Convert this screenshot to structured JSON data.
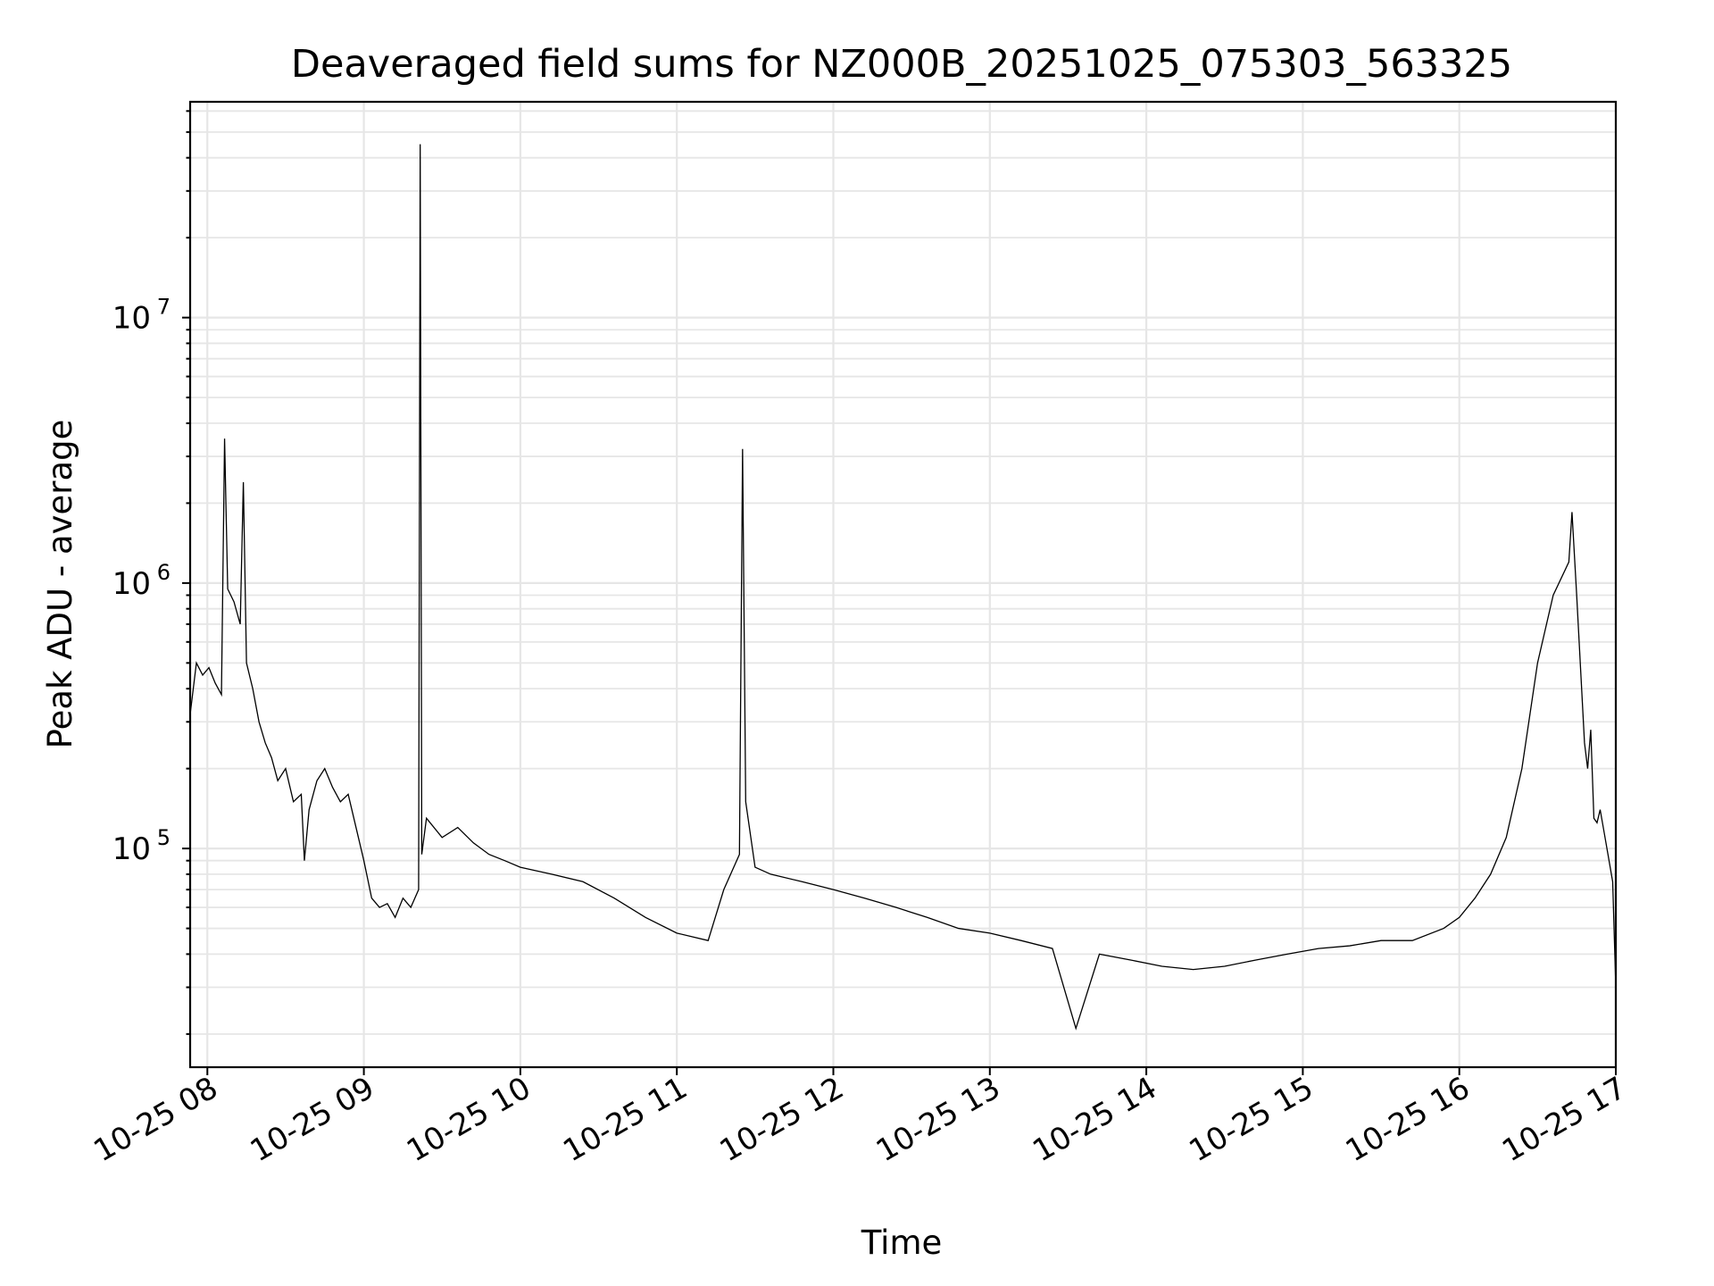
{
  "chart_data": {
    "type": "line",
    "title": "Deaveraged field sums for NZ000B_20251025_075303_563325",
    "xlabel": "Time",
    "ylabel": "Peak ADU - average",
    "yscale": "log",
    "grid": true,
    "x_unit": "hours since 10-25 00:00",
    "xlim": [
      7.89,
      17.0
    ],
    "ylim": [
      15000,
      65000000
    ],
    "x_ticks": [
      {
        "value": 8,
        "label": "10-25 08"
      },
      {
        "value": 9,
        "label": "10-25 09"
      },
      {
        "value": 10,
        "label": "10-25 10"
      },
      {
        "value": 11,
        "label": "10-25 11"
      },
      {
        "value": 12,
        "label": "10-25 12"
      },
      {
        "value": 13,
        "label": "10-25 13"
      },
      {
        "value": 14,
        "label": "10-25 14"
      },
      {
        "value": 15,
        "label": "10-25 15"
      },
      {
        "value": 16,
        "label": "10-25 16"
      },
      {
        "value": 17,
        "label": "10-25 17"
      }
    ],
    "y_ticks": [
      {
        "value": 100000,
        "base": "10",
        "exp": "5"
      },
      {
        "value": 1000000,
        "base": "10",
        "exp": "6"
      },
      {
        "value": 10000000,
        "base": "10",
        "exp": "7"
      }
    ],
    "series": [
      {
        "name": "Peak ADU - average",
        "color": "#000000",
        "x": [
          7.89,
          7.93,
          7.97,
          8.01,
          8.05,
          8.09,
          8.11,
          8.13,
          8.17,
          8.21,
          8.23,
          8.25,
          8.29,
          8.33,
          8.37,
          8.41,
          8.45,
          8.5,
          8.55,
          8.6,
          8.62,
          8.65,
          8.7,
          8.75,
          8.8,
          8.85,
          8.9,
          8.95,
          9.0,
          9.05,
          9.1,
          9.15,
          9.2,
          9.25,
          9.3,
          9.35,
          9.36,
          9.37,
          9.4,
          9.5,
          9.6,
          9.7,
          9.8,
          9.9,
          10.0,
          10.2,
          10.4,
          10.6,
          10.8,
          11.0,
          11.2,
          11.3,
          11.4,
          11.42,
          11.44,
          11.5,
          11.6,
          11.8,
          12.0,
          12.2,
          12.4,
          12.6,
          12.8,
          13.0,
          13.2,
          13.4,
          13.55,
          13.7,
          13.9,
          14.1,
          14.3,
          14.5,
          14.7,
          14.9,
          15.1,
          15.3,
          15.5,
          15.7,
          15.9,
          16.0,
          16.1,
          16.2,
          16.3,
          16.4,
          16.5,
          16.6,
          16.7,
          16.72,
          16.75,
          16.8,
          16.82,
          16.84,
          16.86,
          16.88,
          16.9,
          16.92,
          16.95,
          16.98,
          17.0
        ],
        "values": [
          320000,
          500000,
          450000,
          480000,
          420000,
          380000,
          3500000,
          950000,
          850000,
          700000,
          2400000,
          500000,
          400000,
          300000,
          250000,
          220000,
          180000,
          200000,
          150000,
          160000,
          90000,
          140000,
          180000,
          200000,
          170000,
          150000,
          160000,
          120000,
          90000,
          65000,
          60000,
          62000,
          55000,
          65000,
          60000,
          70000,
          45000000,
          95000,
          130000,
          110000,
          120000,
          105000,
          95000,
          90000,
          85000,
          80000,
          75000,
          65000,
          55000,
          48000,
          45000,
          70000,
          95000,
          3200000,
          150000,
          85000,
          80000,
          75000,
          70000,
          65000,
          60000,
          55000,
          50000,
          48000,
          45000,
          42000,
          21000,
          40000,
          38000,
          36000,
          35000,
          36000,
          38000,
          40000,
          42000,
          43000,
          45000,
          45000,
          50000,
          55000,
          65000,
          80000,
          110000,
          200000,
          500000,
          900000,
          1200000,
          1850000,
          900000,
          250000,
          200000,
          280000,
          130000,
          125000,
          140000,
          120000,
          95000,
          75000,
          30000
        ]
      }
    ]
  }
}
